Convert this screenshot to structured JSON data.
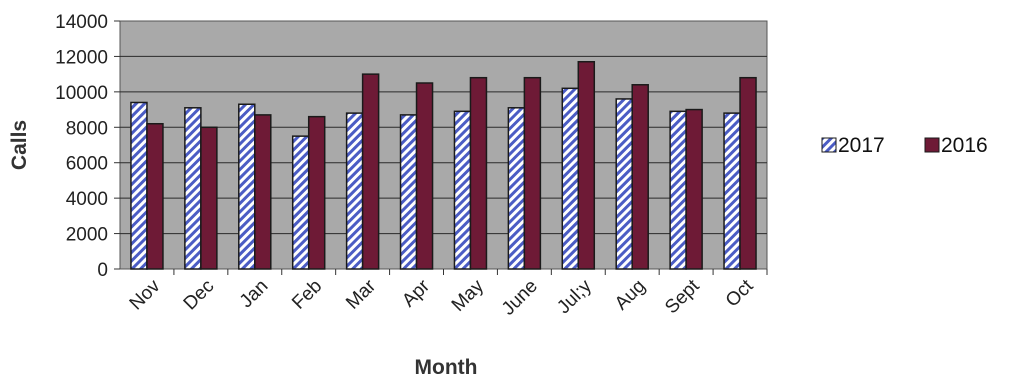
{
  "chart_data": {
    "type": "bar",
    "title": "",
    "xlabel": "Month",
    "ylabel": "Calls",
    "ylim": [
      0,
      14000
    ],
    "yticks": [
      0,
      2000,
      4000,
      6000,
      8000,
      10000,
      12000,
      14000
    ],
    "grid": true,
    "legend_position": "right",
    "categories": [
      "Nov",
      "Dec",
      "Jan",
      "Feb",
      "Mar",
      "Apr",
      "May",
      "June",
      "Jul;y",
      "Aug",
      "Sept",
      "Oct"
    ],
    "series": [
      {
        "name": "2017",
        "values": [
          9400,
          9100,
          9300,
          7500,
          8800,
          8700,
          8900,
          9100,
          10200,
          9600,
          8900,
          8800
        ]
      },
      {
        "name": "2016",
        "values": [
          8200,
          8000,
          8700,
          8600,
          11000,
          10500,
          10800,
          10800,
          11700,
          10400,
          9000,
          10800
        ]
      }
    ],
    "colors": {
      "plot_background": "#a9a9a9",
      "series_2017_stripe": "#4b5cc4",
      "series_2017_base": "#ffffff",
      "series_2016": "#6e1a36",
      "bar_outline": "#1a1a1a",
      "gridline": "#2a2a2a"
    }
  }
}
